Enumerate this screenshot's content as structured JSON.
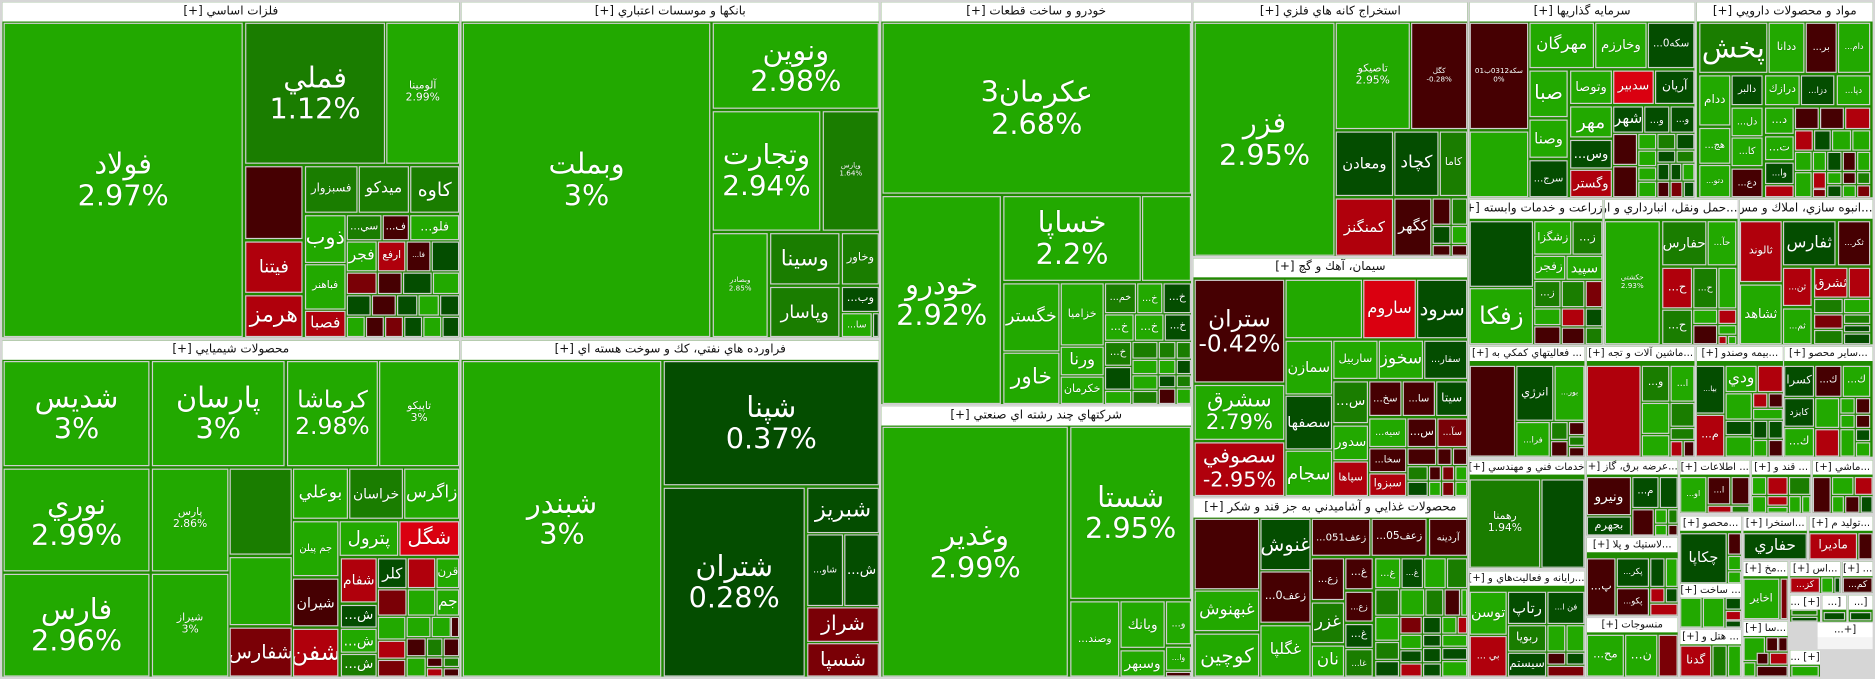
{
  "colors": {
    "G": "#22a900",
    "M": "#1a7d00",
    "D": "#044d00",
    "K": "#460002",
    "R": "#b0000c",
    "B": "#da0010",
    "W": "#7a0006"
  },
  "sectors": [
    {
      "title": "فلزات اساسي [+]",
      "tiles": [
        {
          "s": "فولاد",
          "p": "2.97%",
          "c": "G"
        },
        {
          "s": "فملي",
          "p": "1.12%",
          "c": "M"
        },
        {
          "s": "آلومينا",
          "p": "2.99%",
          "c": "G"
        },
        {
          "s": "فسبزوار",
          "c": "M"
        },
        {
          "s": "ميدكو",
          "c": "M"
        },
        {
          "s": "كاوه",
          "c": "M"
        },
        {
          "s": "فيتنا",
          "c": "R"
        },
        {
          "s": "هرمز",
          "c": "R"
        },
        {
          "s": "ذوب",
          "c": "G"
        },
        {
          "s": "فباهنر",
          "c": "G"
        },
        {
          "s": "فصبا",
          "c": "R"
        },
        {
          "s": "...سي",
          "c": "M"
        },
        {
          "s": "...ف",
          "c": "K"
        },
        {
          "s": "...فلو",
          "c": "G"
        },
        {
          "s": "فجر",
          "c": "G"
        },
        {
          "s": "ارفع",
          "c": "R"
        },
        {
          "s": "...فا",
          "c": "K"
        }
      ]
    },
    {
      "title": "بانكها و موسسات اعتباري [+]",
      "tiles": [
        {
          "s": "وبملت",
          "p": "3%",
          "c": "G"
        },
        {
          "s": "ونوين",
          "p": "2.98%",
          "c": "G"
        },
        {
          "s": "وتجارت",
          "p": "2.94%",
          "c": "G"
        },
        {
          "s": "وپارس",
          "p": "1.64%",
          "c": "M"
        },
        {
          "s": "وبصادر",
          "p": "2.85%",
          "c": "G"
        },
        {
          "s": "وسينا",
          "c": "M"
        },
        {
          "s": "وپاسار",
          "c": "M"
        },
        {
          "s": "وخاور",
          "c": "M"
        },
        {
          "s": "...وب",
          "c": "D"
        },
        {
          "s": "...سا",
          "c": "G"
        }
      ]
    },
    {
      "title": "خودرو و ساخت قطعات [+]",
      "tiles": [
        {
          "s": "عكرمان3",
          "p": "2.68%",
          "c": "G"
        },
        {
          "s": "خودرو",
          "p": "2.92%",
          "c": "G"
        },
        {
          "s": "خساپا",
          "p": "2.2%",
          "c": "G"
        },
        {
          "s": "خگستر",
          "c": "G"
        },
        {
          "s": "خاور",
          "c": "G"
        },
        {
          "s": "خزاميا",
          "c": "G"
        },
        {
          "s": "ورنا",
          "c": "G"
        },
        {
          "s": "خكرمان",
          "c": "G"
        },
        {
          "s": "...خم",
          "c": "M"
        },
        {
          "s": "...خ",
          "c": "G"
        },
        {
          "s": "...خ",
          "c": "D"
        },
        {
          "s": "...خ",
          "c": "G"
        },
        {
          "s": "...خ",
          "c": "G"
        },
        {
          "s": "...خ",
          "c": "D"
        },
        {
          "s": "...خ",
          "c": "M"
        }
      ]
    },
    {
      "title": "استخراج كانه هاي فلزي [+]",
      "tiles": [
        {
          "s": "فزر",
          "p": "2.95%",
          "c": "G"
        },
        {
          "s": "تاصيكو",
          "p": "2.95%",
          "c": "G"
        },
        {
          "s": "كگل",
          "p": "-0.28%",
          "c": "K"
        },
        {
          "s": "ومعادن",
          "c": "D"
        },
        {
          "s": "كچاد",
          "c": "D"
        },
        {
          "s": "كاما",
          "c": "M"
        },
        {
          "s": "كمنگنز",
          "c": "R"
        },
        {
          "s": "كگهر",
          "c": "K"
        }
      ]
    },
    {
      "title": "سرمايه گذاريها [+]",
      "tiles": [
        {
          "s": "سکه0312ب01",
          "p": "0%",
          "c": "K"
        },
        {
          "s": "مهرگان",
          "c": "G"
        },
        {
          "s": "وخارزم",
          "c": "G"
        },
        {
          "s": "...سکه0",
          "c": "D"
        },
        {
          "s": "صبا",
          "c": "G"
        },
        {
          "s": "وصنا",
          "c": "G"
        },
        {
          "s": "...سرج",
          "c": "D"
        },
        {
          "s": "وتوصا",
          "c": "G"
        },
        {
          "s": "سدبير",
          "c": "B"
        },
        {
          "s": "آريان",
          "c": "D"
        },
        {
          "s": "مهر",
          "c": "G"
        },
        {
          "s": "...وس",
          "c": "D"
        },
        {
          "s": "وگستر",
          "c": "R"
        },
        {
          "s": "شهر",
          "c": "D"
        },
        {
          "s": "...و",
          "c": "D"
        },
        {
          "s": "...و",
          "c": "D"
        }
      ]
    },
    {
      "title": "مواد و محصولات دارويي [+]",
      "tiles": [
        {
          "s": "پخش",
          "c": "M"
        },
        {
          "s": "ددانا",
          "c": "G"
        },
        {
          "s": "...بر",
          "c": "K"
        },
        {
          "s": "...دام",
          "c": "G"
        },
        {
          "s": "ددام",
          "c": "G"
        },
        {
          "s": "...هج",
          "c": "G"
        },
        {
          "s": "...دتو",
          "c": "G"
        },
        {
          "s": "دالبر",
          "c": "D"
        },
        {
          "s": "...دل",
          "c": "G"
        },
        {
          "s": "...كا",
          "c": "G"
        },
        {
          "s": "...دع",
          "c": "K"
        },
        {
          "s": "درازك",
          "c": "G"
        },
        {
          "s": "...دزا",
          "c": "D"
        },
        {
          "s": "...دپا",
          "c": "G"
        },
        {
          "s": "...د",
          "c": "G"
        },
        {
          "s": "...ت",
          "c": "G"
        },
        {
          "s": "...وا",
          "c": "D"
        }
      ]
    },
    {
      "title": "محصولات شيميايي [+]",
      "tiles": [
        {
          "s": "شديس",
          "p": "3%",
          "c": "G"
        },
        {
          "s": "نوري",
          "p": "2.99%",
          "c": "G"
        },
        {
          "s": "فارس",
          "p": "2.96%",
          "c": "G"
        },
        {
          "s": "پارسان",
          "p": "3%",
          "c": "G"
        },
        {
          "s": "كرماشا",
          "p": "2.98%",
          "c": "G"
        },
        {
          "s": "تاپيكو",
          "p": "3%",
          "c": "G"
        },
        {
          "s": "پارس",
          "p": "2.86%",
          "c": "G"
        },
        {
          "s": "شيراز",
          "p": "3%",
          "c": "G"
        },
        {
          "s": "شفارس",
          "c": "W"
        },
        {
          "s": "بوعلي",
          "c": "G"
        },
        {
          "s": "خراسان",
          "c": "M"
        },
        {
          "s": "زاگرس",
          "c": "G"
        },
        {
          "s": "جم پيلن",
          "c": "G"
        },
        {
          "s": "پترول",
          "c": "G"
        },
        {
          "s": "شگل",
          "c": "B"
        },
        {
          "s": "شيران",
          "c": "K"
        },
        {
          "s": "شفن",
          "c": "R"
        },
        {
          "s": "شفام",
          "c": "R"
        },
        {
          "s": "كلر",
          "c": "D"
        },
        {
          "s": "قرن",
          "c": "G"
        },
        {
          "s": "...ش",
          "c": "D"
        },
        {
          "s": "...ش",
          "c": "G"
        },
        {
          "s": "...ش",
          "c": "M"
        },
        {
          "s": "جم",
          "c": "G"
        }
      ]
    },
    {
      "title": "فراورده هاي نفتي، كك و سوخت هسته اي [+]",
      "tiles": [
        {
          "s": "شبندر",
          "p": "3%",
          "c": "G"
        },
        {
          "s": "شپنا",
          "p": "0.37%",
          "c": "D"
        },
        {
          "s": "شتران",
          "p": "0.28%",
          "c": "D"
        },
        {
          "s": "شبريز",
          "c": "D"
        },
        {
          "s": "...شاو",
          "c": "D"
        },
        {
          "s": "...ش",
          "c": "D"
        },
        {
          "s": "شراز",
          "c": "W"
        },
        {
          "s": "شسپا",
          "c": "W"
        }
      ]
    },
    {
      "title": "شركتهاي چند رشته اي صنعتي [+]",
      "tiles": [
        {
          "s": "وغدير",
          "p": "2.99%",
          "c": "G"
        },
        {
          "s": "شستا",
          "p": "2.95%",
          "c": "G"
        },
        {
          "s": "...وصند",
          "c": "G"
        },
        {
          "s": "وبانك",
          "c": "G"
        },
        {
          "s": "وسبهر",
          "c": "G"
        },
        {
          "s": "...و",
          "c": "G"
        },
        {
          "s": "...وا",
          "c": "G"
        }
      ]
    },
    {
      "title": "سيمان، آهك و گچ [+]",
      "tiles": [
        {
          "s": "ستران",
          "p": "-0.42%",
          "c": "K"
        },
        {
          "s": "سشرق",
          "p": "2.79%",
          "c": "G"
        },
        {
          "s": "سصوفي",
          "p": "-2.95%",
          "c": "R"
        },
        {
          "s": "ساروم",
          "c": "B"
        },
        {
          "s": "سرود",
          "c": "D"
        },
        {
          "s": "سمازن",
          "c": "G"
        },
        {
          "s": "سصفها",
          "c": "D"
        },
        {
          "s": "سجام",
          "c": "G"
        },
        {
          "s": "ساربيل",
          "c": "G"
        },
        {
          "s": "سخوز",
          "c": "G"
        },
        {
          "s": "...سفار",
          "c": "D"
        },
        {
          "s": "...س",
          "c": "M"
        },
        {
          "s": "سدور",
          "c": "G"
        },
        {
          "s": "سپاها",
          "c": "R"
        },
        {
          "s": "...سخ",
          "c": "K"
        },
        {
          "s": "...سا",
          "c": "K"
        },
        {
          "s": "سيتا",
          "c": "D"
        },
        {
          "s": "...سيه",
          "c": "G"
        },
        {
          "s": "...س",
          "c": "K"
        },
        {
          "s": "...سآ",
          "c": "W"
        },
        {
          "s": "...سخا",
          "c": "K"
        },
        {
          "s": "سبزوا",
          "c": "R"
        }
      ]
    },
    {
      "title": "محصولات غذايي و آشاميدني به جز قند و شكر [+]",
      "tiles": [
        {
          "s": "غبهنوش",
          "c": "G"
        },
        {
          "s": "كوچين",
          "c": "G"
        },
        {
          "s": "غنوش",
          "c": "D"
        },
        {
          "s": "...زعف0",
          "c": "K"
        },
        {
          "s": "غگلپا",
          "c": "G"
        },
        {
          "s": "...زعف051",
          "c": "K"
        },
        {
          "s": "...زعف05",
          "c": "K"
        },
        {
          "s": "آردينه",
          "c": "K"
        },
        {
          "s": "...زع",
          "c": "K"
        },
        {
          "s": "غزر",
          "c": "M"
        },
        {
          "s": "نان",
          "c": "G"
        },
        {
          "s": "...غ",
          "c": "K"
        },
        {
          "s": "...زع",
          "c": "K"
        },
        {
          "s": "...غ",
          "c": "D"
        },
        {
          "s": "...غا",
          "c": "M"
        },
        {
          "s": "...غ",
          "c": "G"
        },
        {
          "s": "...غ",
          "c": "D"
        }
      ]
    },
    {
      "title": "زراعت و خدمات وابسته [+]",
      "tiles": [
        {
          "s": "زفكا",
          "c": "G"
        },
        {
          "s": "زشگزا",
          "c": "G"
        },
        {
          "s": "...ز",
          "c": "M"
        },
        {
          "s": "زفجر",
          "c": "G"
        },
        {
          "s": "سپيد",
          "c": "G"
        },
        {
          "s": "...ز",
          "c": "M"
        }
      ]
    },
    {
      "title": "...حمل ونقل، انبارداري و ار [+]",
      "tiles": [
        {
          "s": "حكشتي",
          "p": "2.93%",
          "c": "G"
        },
        {
          "s": "حفارس",
          "c": "M"
        },
        {
          "s": "...حآ",
          "c": "G"
        },
        {
          "s": "...ح",
          "c": "R"
        },
        {
          "s": "...ح",
          "c": "M"
        },
        {
          "s": "...ح",
          "c": "M"
        }
      ]
    },
    {
      "title": "...انبوه سازي، املاك و مس [+]",
      "tiles": [
        {
          "s": "ثالوند",
          "c": "R"
        },
        {
          "s": "ثشاهد",
          "c": "G"
        },
        {
          "s": "ثفارس",
          "c": "D"
        },
        {
          "s": "...ثكر",
          "c": "K"
        },
        {
          "s": "...ثن",
          "c": "R"
        },
        {
          "s": "ثشرق",
          "c": "R"
        },
        {
          "s": "...ثم",
          "c": "G"
        }
      ]
    },
    {
      "title": "... فعاليتهاي كمكي به [+]",
      "tiles": [
        {
          "s": "انرژي",
          "c": "D"
        },
        {
          "s": "...بور",
          "c": "G"
        },
        {
          "s": "...فرا",
          "c": "G"
        }
      ]
    },
    {
      "title": "...ماشين آلات و تجه [+]",
      "tiles": [
        {
          "s": "...و",
          "c": "M"
        },
        {
          "s": "...ا",
          "c": "G"
        }
      ]
    },
    {
      "title": "...بيمه وصندو [+]",
      "tiles": [
        {
          "s": "...بيا",
          "c": "D"
        },
        {
          "s": "ودي",
          "c": "G"
        },
        {
          "s": "...م",
          "c": "R"
        }
      ]
    },
    {
      "title": "...ساير محصو [+]",
      "tiles": [
        {
          "s": "كسرا",
          "c": "D"
        },
        {
          "s": "...ك",
          "c": "K"
        },
        {
          "s": "...ك",
          "c": "G"
        },
        {
          "s": "كايزد",
          "c": "D"
        },
        {
          "s": "...ك",
          "c": "G"
        }
      ]
    },
    {
      "title": "خدمات فني و مهندسي [+]",
      "tiles": [
        {
          "s": "رهمنا",
          "p": "1.94%",
          "c": "M"
        }
      ]
    },
    {
      "title": "...عرضه برق، گاز [+]",
      "tiles": [
        {
          "s": "ونيرو",
          "c": "K"
        },
        {
          "s": "بجهرم",
          "c": "D"
        },
        {
          "s": "...م",
          "c": "D"
        }
      ]
    },
    {
      "title": "... اطلاعات [+]",
      "tiles": [
        {
          "s": "...او",
          "c": "G"
        },
        {
          "s": "...ا",
          "c": "K"
        }
      ]
    },
    {
      "title": "... قند و [+]",
      "tiles": []
    },
    {
      "title": "...ماشي [+]",
      "tiles": []
    },
    {
      "title": "...رايانه و فعاليت‌هاي و [+]",
      "tiles": [
        {
          "s": "توسن",
          "c": "G"
        },
        {
          "s": "... بي",
          "c": "R"
        },
        {
          "s": "رتاپ",
          "c": "D"
        },
        {
          "s": "...فن ا",
          "c": "D"
        },
        {
          "s": "ربويا",
          "c": "M"
        },
        {
          "s": "سيستم",
          "c": "D"
        }
      ]
    },
    {
      "title": "...لاستيك و پلا [+]",
      "tiles": [
        {
          "s": "...پ",
          "c": "K"
        },
        {
          "s": "...پكر",
          "c": "D"
        },
        {
          "s": "...پكو",
          "c": "K"
        }
      ]
    },
    {
      "title": "...محصو [+]",
      "tiles": [
        {
          "s": "چكاپا",
          "c": "D"
        }
      ]
    },
    {
      "title": "...استخرا [+]",
      "tiles": [
        {
          "s": "حفاري",
          "c": "D"
        }
      ]
    },
    {
      "title": "...توليد م [+]",
      "tiles": [
        {
          "s": "ماديرا",
          "c": "R"
        }
      ]
    },
    {
      "title": "... ساخت [+]",
      "tiles": []
    },
    {
      "title": "...مخ [+]",
      "tiles": [
        {
          "s": "اخاير",
          "c": "G"
        }
      ]
    },
    {
      "title": "...اس [+]",
      "tiles": [
        {
          "s": "...كز",
          "c": "R"
        }
      ]
    },
    {
      "title": "... [+]",
      "tiles": [
        {
          "s": "...كم",
          "c": "K"
        }
      ]
    },
    {
      "title": "منسوجات [+]",
      "tiles": [
        {
          "s": "...مح",
          "c": "G"
        },
        {
          "s": "...ن",
          "c": "G"
        }
      ]
    },
    {
      "title": "... هتل و [+]",
      "tiles": [
        {
          "s": "گدنا",
          "c": "R"
        }
      ]
    },
    {
      "title": "...سا [+]",
      "tiles": []
    },
    {
      "title": "[+] ...",
      "tiles": []
    },
    {
      "title": "[...",
      "tiles": []
    },
    {
      "title": "[...",
      "tiles": []
    },
    {
      "title": "[+...",
      "tiles": []
    },
    {
      "title": "[+] ...",
      "tiles": []
    }
  ]
}
